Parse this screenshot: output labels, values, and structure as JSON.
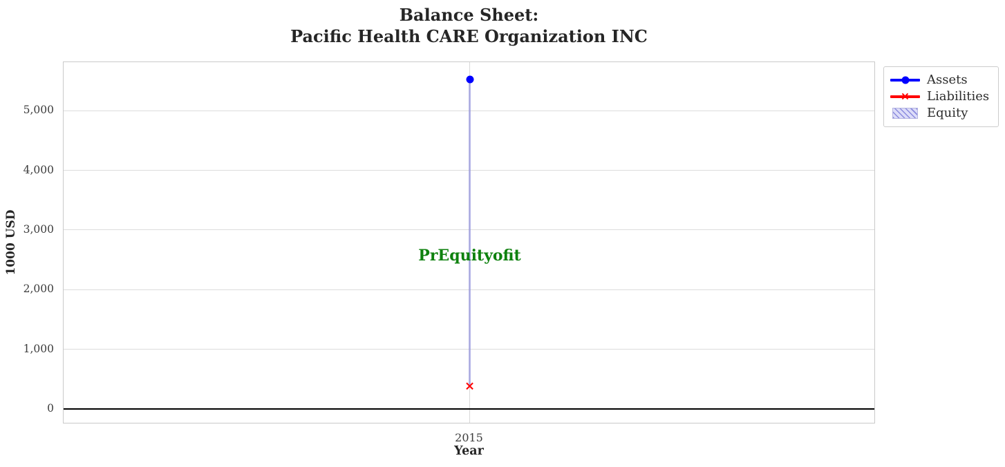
{
  "chart_data": {
    "type": "line",
    "title": "Balance Sheet:\nPacific Health CARE Organization INC",
    "title_lines": [
      "Balance Sheet:",
      "Pacific Health CARE Organization INC"
    ],
    "xlabel": "Year",
    "ylabel": "1000 USD",
    "x_categories": [
      "2015"
    ],
    "ylim": [
      -250,
      5810
    ],
    "yticks": [
      0,
      1000,
      2000,
      3000,
      4000,
      5000
    ],
    "ytick_labels": [
      "0",
      "1,000",
      "2,000",
      "3,000",
      "4,000",
      "5,000"
    ],
    "grid": true,
    "background_color": "#ffffff",
    "legend_position": "outside upper right",
    "series": [
      {
        "name": "Assets",
        "type": "line",
        "marker": "circle",
        "color": "#0000ff",
        "values": [
          5520
        ]
      },
      {
        "name": "Liabilities",
        "type": "line",
        "marker": "x",
        "color": "#ff0000",
        "values": [
          372
        ]
      },
      {
        "name": "Equity",
        "type": "band",
        "fill_color": "#dcdcf8",
        "hatch": "///",
        "hatch_color": "#8a8ade",
        "band_from": [
          372
        ],
        "band_to": [
          5520
        ]
      }
    ],
    "annotations": [
      {
        "text": "PrEquityofit",
        "x": "2015",
        "y": 2572,
        "color": "#0e810e"
      }
    ],
    "zero_line": {
      "value": 0,
      "color": "#000000"
    }
  }
}
